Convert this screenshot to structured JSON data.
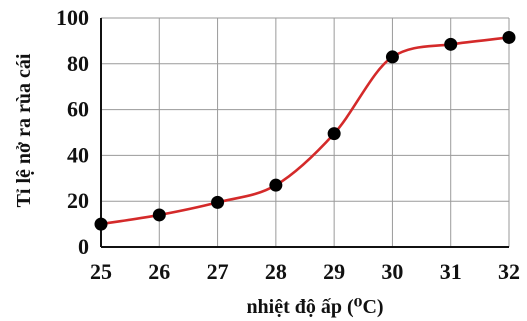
{
  "chart_data": {
    "type": "line",
    "title": "",
    "xlabel": "nhiệt độ ấp (⁰C)",
    "ylabel": "Tỉ lệ nở ra rùa cái",
    "x": [
      25,
      26,
      27,
      28,
      29,
      30,
      31,
      32
    ],
    "series": [
      {
        "values": [
          10,
          14,
          19.5,
          27,
          49.5,
          83,
          88.5,
          91.5
        ],
        "color": "#d42a2a",
        "marker_color": "#000000"
      }
    ],
    "xlim": [
      25,
      32
    ],
    "ylim": [
      0,
      100
    ],
    "xticks": [
      25,
      26,
      27,
      28,
      29,
      30,
      31,
      32
    ],
    "yticks": [
      0,
      20,
      40,
      60,
      80,
      100
    ],
    "xtick_labels": [
      "25",
      "26",
      "27",
      "28",
      "29",
      "30",
      "31",
      "32"
    ],
    "ytick_labels": [
      "0",
      "20",
      "40",
      "60",
      "80",
      "100"
    ],
    "grid": true,
    "legend": "none"
  }
}
